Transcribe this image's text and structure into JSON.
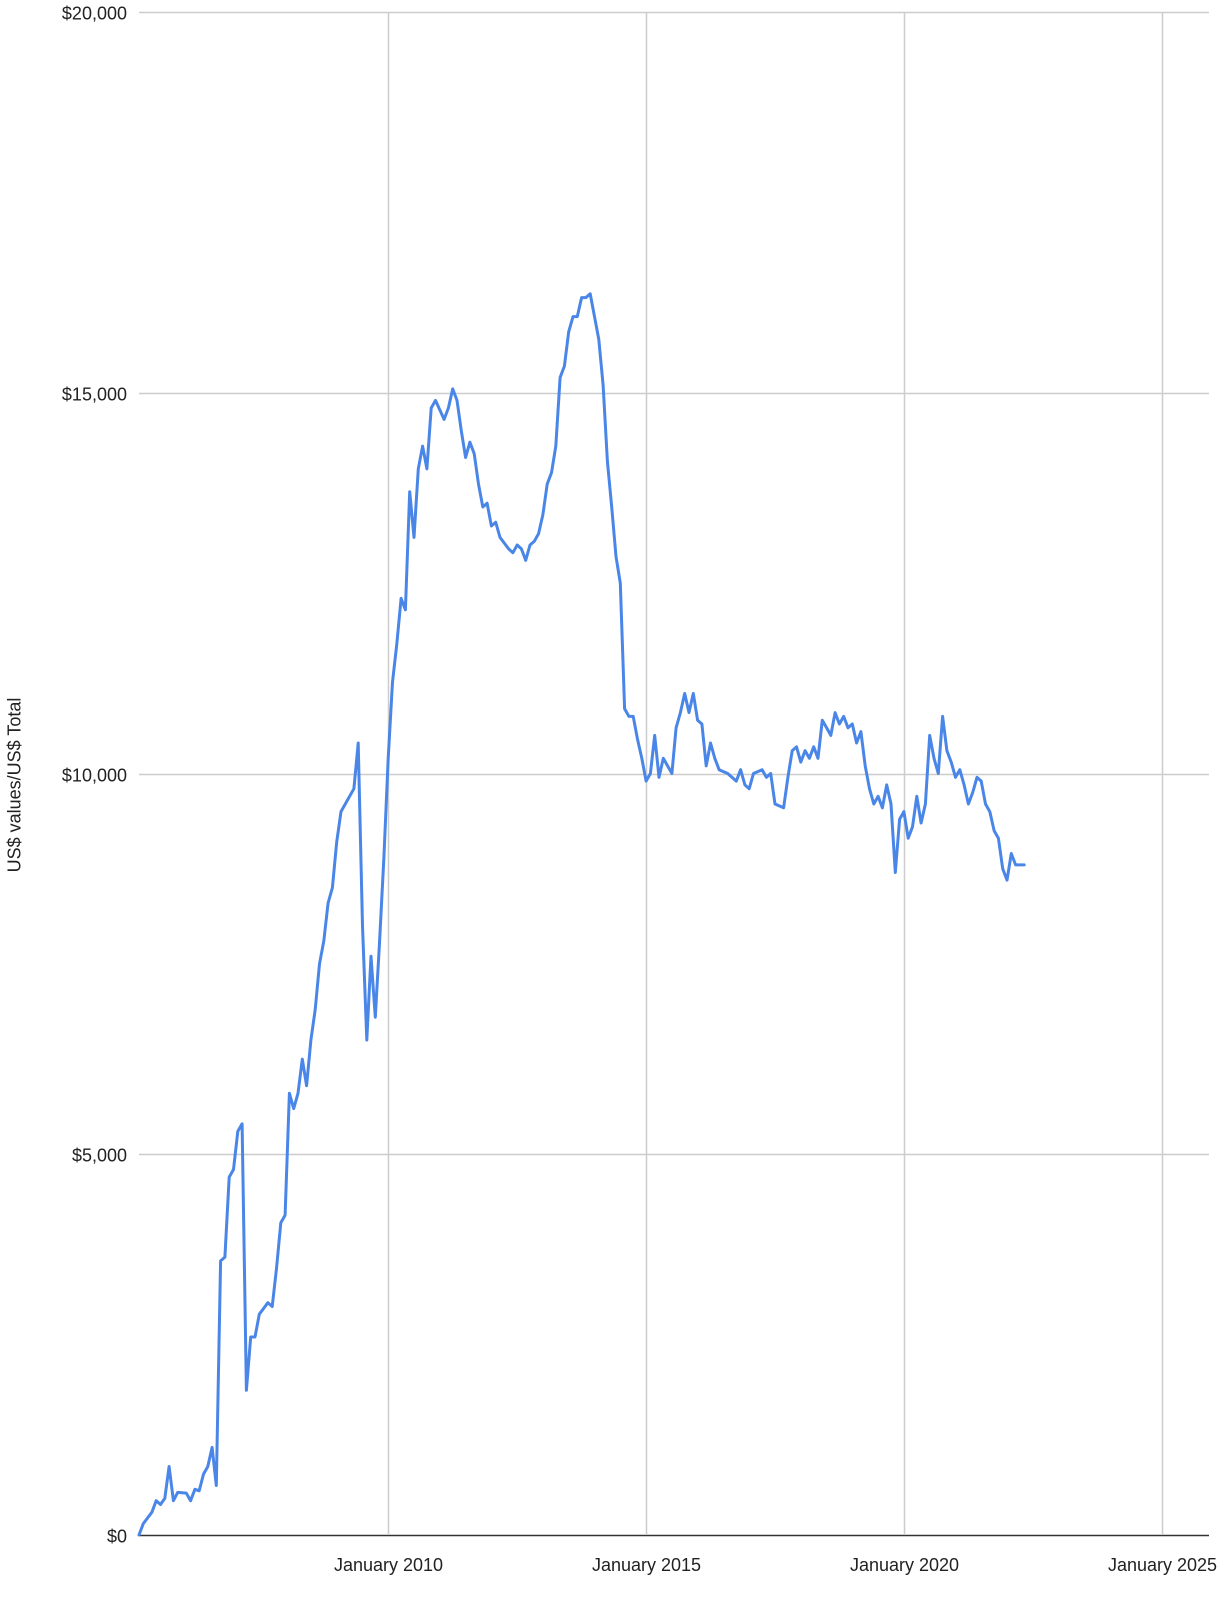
{
  "chart_data": {
    "type": "line",
    "title": "",
    "xlabel": "",
    "ylabel": "US$ values/US$ Total",
    "ylim": [
      0,
      20000
    ],
    "xlim": [
      "2005-03",
      "2025-12"
    ],
    "y_ticks": [
      0,
      5000,
      10000,
      15000,
      20000
    ],
    "y_tick_labels": [
      "$0",
      "$5,000",
      "$10,000",
      "$15,000",
      "$20,000"
    ],
    "x_ticks": [
      "2010-01",
      "2015-01",
      "2020-01",
      "2025-01"
    ],
    "x_tick_labels": [
      "January 2010",
      "January 2015",
      "January 2020",
      "January 2025"
    ],
    "grid": true,
    "legend": "none",
    "series": [
      {
        "color": "#4a86e8",
        "points": [
          [
            "2005-03",
            0
          ],
          [
            "2005-04",
            150
          ],
          [
            "2005-06",
            300
          ],
          [
            "2005-07",
            450
          ],
          [
            "2005-08",
            400
          ],
          [
            "2005-09",
            480
          ],
          [
            "2005-10",
            900
          ],
          [
            "2005-11",
            450
          ],
          [
            "2005-12",
            560
          ],
          [
            "2006-02",
            550
          ],
          [
            "2006-03",
            450
          ],
          [
            "2006-04",
            600
          ],
          [
            "2006-05",
            580
          ],
          [
            "2006-06",
            800
          ],
          [
            "2006-07",
            900
          ],
          [
            "2006-08",
            1150
          ],
          [
            "2006-09",
            650
          ],
          [
            "2006-10",
            3600
          ],
          [
            "2006-11",
            3650
          ],
          [
            "2006-12",
            4700
          ],
          [
            "2007-01",
            4800
          ],
          [
            "2007-02",
            5300
          ],
          [
            "2007-03",
            5400
          ],
          [
            "2007-04",
            1900
          ],
          [
            "2007-05",
            2600
          ],
          [
            "2007-06",
            2600
          ],
          [
            "2007-07",
            2900
          ],
          [
            "2007-09",
            3050
          ],
          [
            "2007-10",
            3000
          ],
          [
            "2007-11",
            3500
          ],
          [
            "2007-12",
            4100
          ],
          [
            "2008-01",
            4200
          ],
          [
            "2008-02",
            5800
          ],
          [
            "2008-03",
            5600
          ],
          [
            "2008-04",
            5800
          ],
          [
            "2008-05",
            6250
          ],
          [
            "2008-06",
            5900
          ],
          [
            "2008-07",
            6500
          ],
          [
            "2008-08",
            6900
          ],
          [
            "2008-09",
            7500
          ],
          [
            "2008-10",
            7800
          ],
          [
            "2008-11",
            8300
          ],
          [
            "2008-12",
            8500
          ],
          [
            "2009-01",
            9100
          ],
          [
            "2009-02",
            9500
          ],
          [
            "2009-04",
            9700
          ],
          [
            "2009-05",
            9800
          ],
          [
            "2009-06",
            10400
          ],
          [
            "2009-07",
            8000
          ],
          [
            "2009-08",
            6500
          ],
          [
            "2009-09",
            7600
          ],
          [
            "2009-10",
            6800
          ],
          [
            "2009-11",
            7800
          ],
          [
            "2009-12",
            8900
          ],
          [
            "2010-01",
            10200
          ],
          [
            "2010-02",
            11200
          ],
          [
            "2010-03",
            11700
          ],
          [
            "2010-04",
            12300
          ],
          [
            "2010-05",
            12150
          ],
          [
            "2010-06",
            13700
          ],
          [
            "2010-07",
            13100
          ],
          [
            "2010-08",
            14000
          ],
          [
            "2010-09",
            14300
          ],
          [
            "2010-10",
            14000
          ],
          [
            "2010-11",
            14800
          ],
          [
            "2010-12",
            14900
          ],
          [
            "2011-02",
            14650
          ],
          [
            "2011-03",
            14800
          ],
          [
            "2011-04",
            15050
          ],
          [
            "2011-05",
            14900
          ],
          [
            "2011-06",
            14500
          ],
          [
            "2011-07",
            14150
          ],
          [
            "2011-08",
            14350
          ],
          [
            "2011-09",
            14200
          ],
          [
            "2011-10",
            13800
          ],
          [
            "2011-11",
            13500
          ],
          [
            "2011-12",
            13550
          ],
          [
            "2012-01",
            13250
          ],
          [
            "2012-02",
            13300
          ],
          [
            "2012-03",
            13100
          ],
          [
            "2012-05",
            12950
          ],
          [
            "2012-06",
            12900
          ],
          [
            "2012-07",
            13000
          ],
          [
            "2012-08",
            12950
          ],
          [
            "2012-09",
            12800
          ],
          [
            "2012-10",
            13000
          ],
          [
            "2012-11",
            13050
          ],
          [
            "2012-12",
            13150
          ],
          [
            "2013-01",
            13400
          ],
          [
            "2013-02",
            13800
          ],
          [
            "2013-03",
            13950
          ],
          [
            "2013-04",
            14300
          ],
          [
            "2013-05",
            15200
          ],
          [
            "2013-06",
            15350
          ],
          [
            "2013-07",
            15800
          ],
          [
            "2013-08",
            16000
          ],
          [
            "2013-09",
            16000
          ],
          [
            "2013-10",
            16250
          ],
          [
            "2013-11",
            16250
          ],
          [
            "2013-12",
            16300
          ],
          [
            "2014-01",
            16000
          ],
          [
            "2014-02",
            15700
          ],
          [
            "2014-03",
            15100
          ],
          [
            "2014-04",
            14100
          ],
          [
            "2014-05",
            13500
          ],
          [
            "2014-06",
            12850
          ],
          [
            "2014-07",
            12500
          ],
          [
            "2014-08",
            10850
          ],
          [
            "2014-09",
            10750
          ],
          [
            "2014-10",
            10750
          ],
          [
            "2014-11",
            10450
          ],
          [
            "2014-12",
            10200
          ],
          [
            "2015-01",
            9900
          ],
          [
            "2015-02",
            10000
          ],
          [
            "2015-03",
            10500
          ],
          [
            "2015-04",
            9950
          ],
          [
            "2015-05",
            10200
          ],
          [
            "2015-06",
            10100
          ],
          [
            "2015-07",
            10000
          ],
          [
            "2015-08",
            10600
          ],
          [
            "2015-09",
            10800
          ],
          [
            "2015-10",
            11050
          ],
          [
            "2015-11",
            10800
          ],
          [
            "2015-12",
            11050
          ],
          [
            "2016-01",
            10700
          ],
          [
            "2016-02",
            10650
          ],
          [
            "2016-03",
            10100
          ],
          [
            "2016-04",
            10400
          ],
          [
            "2016-05",
            10200
          ],
          [
            "2016-06",
            10050
          ],
          [
            "2016-08",
            10000
          ],
          [
            "2016-10",
            9900
          ],
          [
            "2016-11",
            10050
          ],
          [
            "2016-12",
            9850
          ],
          [
            "2017-01",
            9800
          ],
          [
            "2017-02",
            10000
          ],
          [
            "2017-04",
            10050
          ],
          [
            "2017-05",
            9950
          ],
          [
            "2017-06",
            10000
          ],
          [
            "2017-07",
            9600
          ],
          [
            "2017-09",
            9550
          ],
          [
            "2017-10",
            9950
          ],
          [
            "2017-11",
            10300
          ],
          [
            "2017-12",
            10350
          ],
          [
            "2018-01",
            10150
          ],
          [
            "2018-02",
            10300
          ],
          [
            "2018-03",
            10200
          ],
          [
            "2018-04",
            10350
          ],
          [
            "2018-05",
            10200
          ],
          [
            "2018-06",
            10700
          ],
          [
            "2018-07",
            10600
          ],
          [
            "2018-08",
            10500
          ],
          [
            "2018-09",
            10800
          ],
          [
            "2018-10",
            10650
          ],
          [
            "2018-11",
            10750
          ],
          [
            "2018-12",
            10600
          ],
          [
            "2019-01",
            10650
          ],
          [
            "2019-02",
            10400
          ],
          [
            "2019-03",
            10550
          ],
          [
            "2019-04",
            10100
          ],
          [
            "2019-05",
            9800
          ],
          [
            "2019-06",
            9600
          ],
          [
            "2019-07",
            9700
          ],
          [
            "2019-08",
            9550
          ],
          [
            "2019-09",
            9850
          ],
          [
            "2019-10",
            9600
          ],
          [
            "2019-11",
            8700
          ],
          [
            "2019-12",
            9400
          ],
          [
            "2020-01",
            9500
          ],
          [
            "2020-02",
            9150
          ],
          [
            "2020-03",
            9300
          ],
          [
            "2020-04",
            9700
          ],
          [
            "2020-05",
            9350
          ],
          [
            "2020-06",
            9600
          ],
          [
            "2020-07",
            10500
          ],
          [
            "2020-08",
            10200
          ],
          [
            "2020-09",
            10000
          ],
          [
            "2020-10",
            10750
          ],
          [
            "2020-11",
            10300
          ],
          [
            "2020-12",
            10150
          ],
          [
            "2021-01",
            9950
          ],
          [
            "2021-02",
            10050
          ],
          [
            "2021-03",
            9850
          ],
          [
            "2021-04",
            9600
          ],
          [
            "2021-05",
            9750
          ],
          [
            "2021-06",
            9950
          ],
          [
            "2021-07",
            9900
          ],
          [
            "2021-08",
            9600
          ],
          [
            "2021-09",
            9500
          ],
          [
            "2021-10",
            9250
          ],
          [
            "2021-11",
            9150
          ],
          [
            "2021-12",
            8750
          ],
          [
            "2022-01",
            8600
          ],
          [
            "2022-02",
            8950
          ],
          [
            "2022-03",
            8800
          ],
          [
            "2022-05",
            8800
          ]
        ]
      }
    ]
  }
}
